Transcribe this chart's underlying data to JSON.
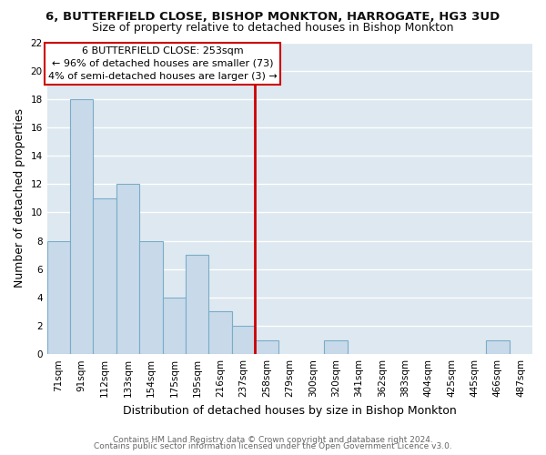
{
  "title": "6, BUTTERFIELD CLOSE, BISHOP MONKTON, HARROGATE, HG3 3UD",
  "subtitle": "Size of property relative to detached houses in Bishop Monkton",
  "xlabel": "Distribution of detached houses by size in Bishop Monkton",
  "ylabel": "Number of detached properties",
  "bar_labels": [
    "71sqm",
    "91sqm",
    "112sqm",
    "133sqm",
    "154sqm",
    "175sqm",
    "195sqm",
    "216sqm",
    "237sqm",
    "258sqm",
    "279sqm",
    "300sqm",
    "320sqm",
    "341sqm",
    "362sqm",
    "383sqm",
    "404sqm",
    "425sqm",
    "445sqm",
    "466sqm",
    "487sqm"
  ],
  "bar_values": [
    8,
    18,
    11,
    12,
    8,
    4,
    7,
    3,
    2,
    1,
    0,
    0,
    1,
    0,
    0,
    0,
    0,
    0,
    0,
    1,
    0
  ],
  "bar_color": "#c8daea",
  "bar_edge_color": "#7aacc8",
  "vline_color": "#cc0000",
  "annotation_title": "6 BUTTERFIELD CLOSE: 253sqm",
  "annotation_line1": "← 96% of detached houses are smaller (73)",
  "annotation_line2": "4% of semi-detached houses are larger (3) →",
  "annotation_box_facecolor": "#ffffff",
  "annotation_box_edgecolor": "#cc0000",
  "ylim": [
    0,
    22
  ],
  "yticks": [
    0,
    2,
    4,
    6,
    8,
    10,
    12,
    14,
    16,
    18,
    20,
    22
  ],
  "footer1": "Contains HM Land Registry data © Crown copyright and database right 2024.",
  "footer2": "Contains public sector information licensed under the Open Government Licence v3.0.",
  "plot_bg_color": "#dde8f0",
  "fig_bg_color": "#ffffff",
  "grid_color": "#ffffff",
  "title_fontsize": 9.5,
  "subtitle_fontsize": 9,
  "axis_label_fontsize": 9,
  "tick_fontsize": 7.5,
  "footer_fontsize": 6.5
}
